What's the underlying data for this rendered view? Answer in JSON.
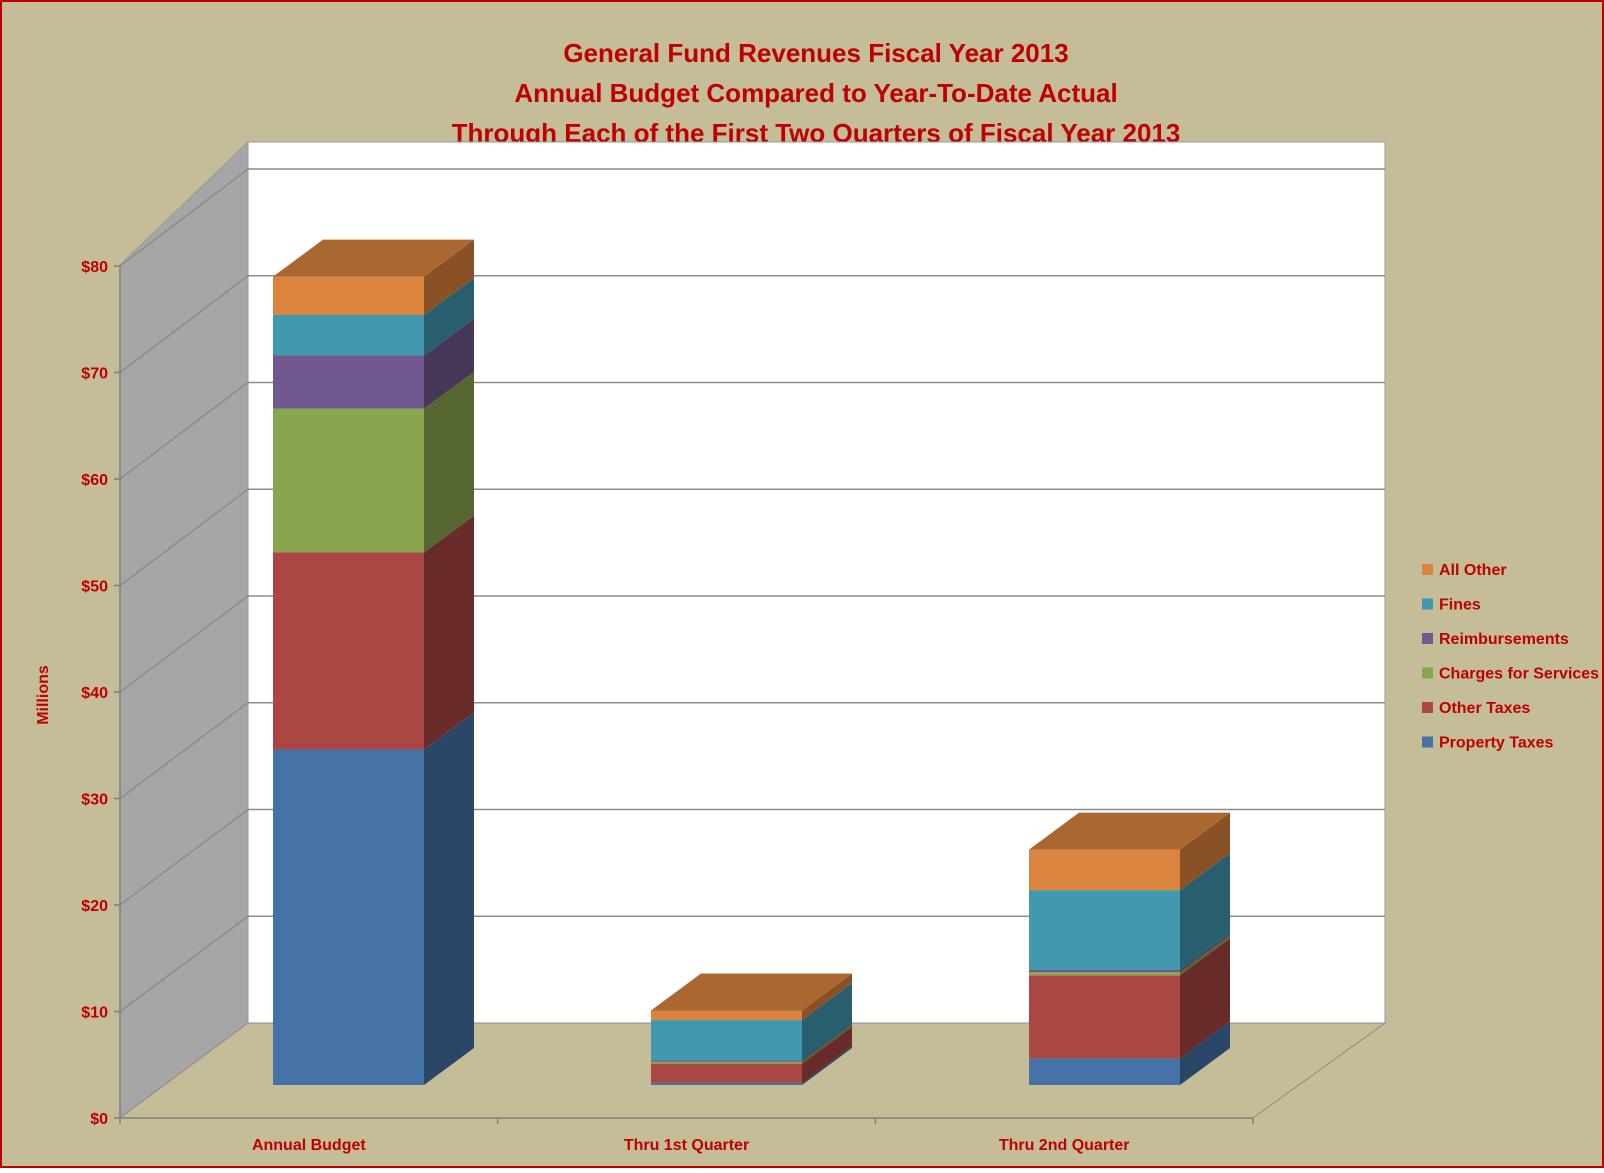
{
  "chart_data": {
    "type": "bar",
    "stacked": true,
    "three_d": true,
    "title": [
      "General Fund Revenues Fiscal Year 2013",
      "Annual Budget Compared to Year-To-Date Actual",
      "Through Each of the First Two Quarters of Fiscal Year 2013"
    ],
    "xlabel": "",
    "ylabel": "Millions",
    "ylim": [
      0,
      80
    ],
    "y_ticks": [
      0,
      10,
      20,
      30,
      40,
      50,
      60,
      70,
      80
    ],
    "y_tick_labels": [
      "$0",
      "$10",
      "$20",
      "$30",
      "$40",
      "$50",
      "$60",
      "$70",
      "$80"
    ],
    "categories": [
      "Annual Budget",
      "Thru 1st Quarter",
      "Thru 2nd Quarter"
    ],
    "series": [
      {
        "name": "Property Taxes",
        "values": [
          31.5,
          0.2,
          2.5
        ],
        "color": "#4572A7"
      },
      {
        "name": "Other Taxes",
        "values": [
          18.5,
          1.8,
          7.8
        ],
        "color": "#AA4643"
      },
      {
        "name": "Charges for Services",
        "values": [
          13.5,
          0.2,
          0.3
        ],
        "color": "#89A54E"
      },
      {
        "name": "Reimbursements",
        "values": [
          5.0,
          0.1,
          0.2
        ],
        "color": "#71588F"
      },
      {
        "name": "Fines",
        "values": [
          3.8,
          3.8,
          7.5
        ],
        "color": "#4198AF"
      },
      {
        "name": "All Other",
        "values": [
          3.6,
          0.9,
          3.8
        ],
        "color": "#DB843D"
      }
    ],
    "legend_position": "right",
    "grid": true,
    "colors": {
      "background": "#C4BD97",
      "border": "#C00000",
      "text": "#C00000",
      "plot_back_wall": "#FFFFFF",
      "side_wall": "#A6A6A6",
      "floor": "#C4BD97"
    }
  }
}
